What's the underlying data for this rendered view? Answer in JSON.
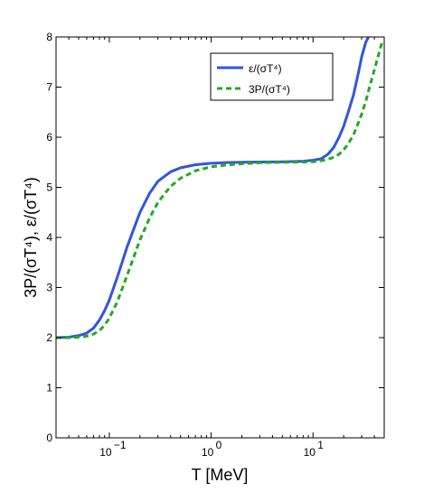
{
  "chart_data": {
    "type": "line",
    "title": "",
    "xlabel": "T [MeV]",
    "ylabel": "3P/(σT⁴), ε/(σT⁴)",
    "xscale": "log",
    "xlim": [
      0.03,
      50
    ],
    "ylim": [
      0,
      8
    ],
    "grid": false,
    "legend_position": "top-right",
    "x_ticks": [
      {
        "value": 0.1,
        "base": "10",
        "exp": "−1"
      },
      {
        "value": 1,
        "base": "10",
        "exp": "0"
      },
      {
        "value": 10,
        "base": "10",
        "exp": "1"
      }
    ],
    "y_ticks": [
      "0",
      "1",
      "2",
      "3",
      "4",
      "5",
      "6",
      "7",
      "8"
    ],
    "series": [
      {
        "name": "ε/(σT⁴)",
        "color": "#3355dd",
        "style": "solid",
        "x": [
          0.03,
          0.04,
          0.05,
          0.06,
          0.07,
          0.08,
          0.09,
          0.1,
          0.12,
          0.15,
          0.2,
          0.25,
          0.3,
          0.4,
          0.5,
          0.7,
          1,
          1.5,
          2,
          3,
          5,
          8,
          10,
          12,
          14,
          16,
          18,
          20,
          22,
          25,
          28,
          30,
          33,
          35
        ],
        "y": [
          2.0,
          2.01,
          2.04,
          2.09,
          2.19,
          2.35,
          2.54,
          2.75,
          3.21,
          3.82,
          4.5,
          4.89,
          5.12,
          5.31,
          5.39,
          5.45,
          5.48,
          5.495,
          5.5,
          5.505,
          5.51,
          5.52,
          5.54,
          5.57,
          5.66,
          5.8,
          6.0,
          6.22,
          6.48,
          6.85,
          7.3,
          7.6,
          7.9,
          8.0
        ]
      },
      {
        "name": "3P/(σT⁴)",
        "color": "#22aa22",
        "style": "dashed",
        "x": [
          0.03,
          0.04,
          0.05,
          0.06,
          0.07,
          0.08,
          0.09,
          0.1,
          0.12,
          0.15,
          0.2,
          0.25,
          0.3,
          0.4,
          0.5,
          0.7,
          1,
          1.5,
          2,
          3,
          5,
          8,
          10,
          12,
          14,
          16,
          18,
          20,
          22,
          25,
          28,
          30,
          33,
          35,
          38,
          42,
          45,
          48
        ],
        "y": [
          2.0,
          2.0,
          2.01,
          2.03,
          2.07,
          2.14,
          2.25,
          2.39,
          2.72,
          3.25,
          3.95,
          4.4,
          4.7,
          5.02,
          5.18,
          5.33,
          5.41,
          5.45,
          5.47,
          5.49,
          5.5,
          5.505,
          5.51,
          5.53,
          5.56,
          5.6,
          5.66,
          5.75,
          5.86,
          6.05,
          6.3,
          6.46,
          6.72,
          6.92,
          7.18,
          7.5,
          7.72,
          7.92
        ]
      }
    ]
  }
}
